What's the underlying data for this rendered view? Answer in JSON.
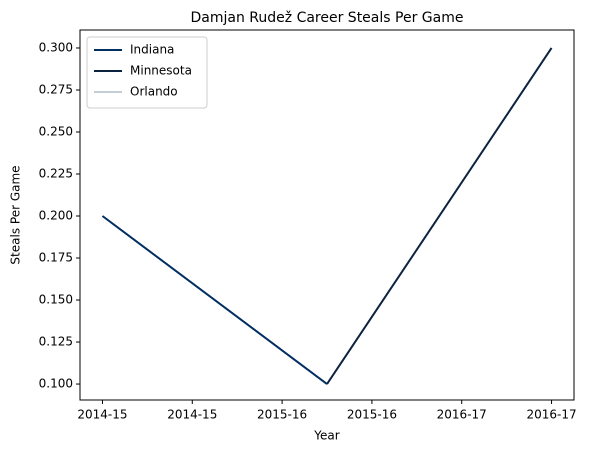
{
  "chart_data": {
    "type": "line",
    "title": "Damjan Rudež Career Steals Per Game",
    "x_label": "Year",
    "y_label": "Steals Per Game",
    "x": [
      0,
      1,
      2
    ],
    "series": [
      {
        "name": "Indiana",
        "color": "#002D62",
        "values": [
          0.2,
          0.1,
          null
        ]
      },
      {
        "name": "Minnesota",
        "color": "#0C2340",
        "values": [
          null,
          0.1,
          0.3
        ]
      },
      {
        "name": "Orlando",
        "color": "#C4CED4",
        "values": [
          null,
          null,
          0.3
        ]
      }
    ],
    "xlim": [
      -0.1,
      2.1
    ],
    "xticks": [
      {
        "value": 0,
        "label": "2014-15"
      },
      {
        "value": 0.4,
        "label": "2014-15"
      },
      {
        "value": 0.8,
        "label": "2015-16"
      },
      {
        "value": 1.2,
        "label": "2015-16"
      },
      {
        "value": 1.6,
        "label": "2016-17"
      },
      {
        "value": 2.0,
        "label": "2016-17"
      }
    ],
    "ylim": [
      0.0905,
      0.3107
    ],
    "yticks": [
      {
        "value": 0.1,
        "label": "0.100"
      },
      {
        "value": 0.125,
        "label": "0.125"
      },
      {
        "value": 0.15,
        "label": "0.150"
      },
      {
        "value": 0.175,
        "label": "0.175"
      },
      {
        "value": 0.2,
        "label": "0.200"
      },
      {
        "value": 0.225,
        "label": "0.225"
      },
      {
        "value": 0.25,
        "label": "0.250"
      },
      {
        "value": 0.275,
        "label": "0.275"
      },
      {
        "value": 0.3,
        "label": "0.300"
      }
    ],
    "legend": "upper left",
    "grid": false
  }
}
